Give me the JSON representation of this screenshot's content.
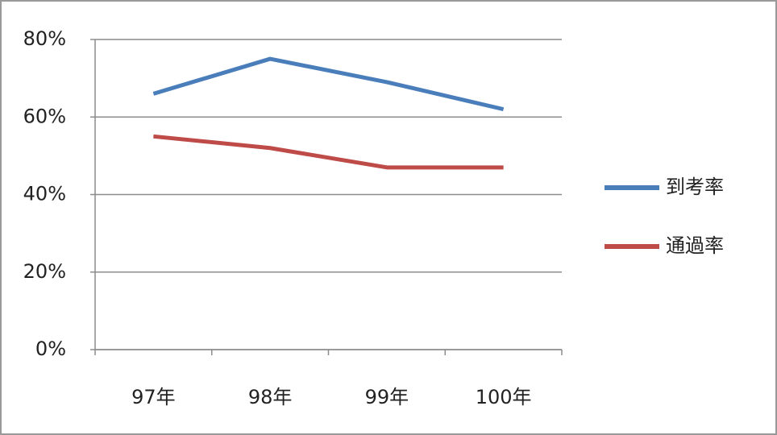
{
  "chart_data": {
    "type": "line",
    "categories": [
      "97年",
      "98年",
      "99年",
      "100年"
    ],
    "series": [
      {
        "name": "到考率",
        "color": "#4a7ebb",
        "values": [
          66,
          75,
          69,
          62
        ]
      },
      {
        "name": "通過率",
        "color": "#be4b48",
        "values": [
          55,
          52,
          47,
          47
        ]
      }
    ],
    "ylim": [
      0,
      80
    ],
    "yticks": [
      {
        "value": 0,
        "label": "0%"
      },
      {
        "value": 20,
        "label": "20%"
      },
      {
        "value": 40,
        "label": "40%"
      },
      {
        "value": 60,
        "label": "60%"
      },
      {
        "value": 80,
        "label": "80%"
      }
    ],
    "grid": true,
    "legend": "right"
  }
}
